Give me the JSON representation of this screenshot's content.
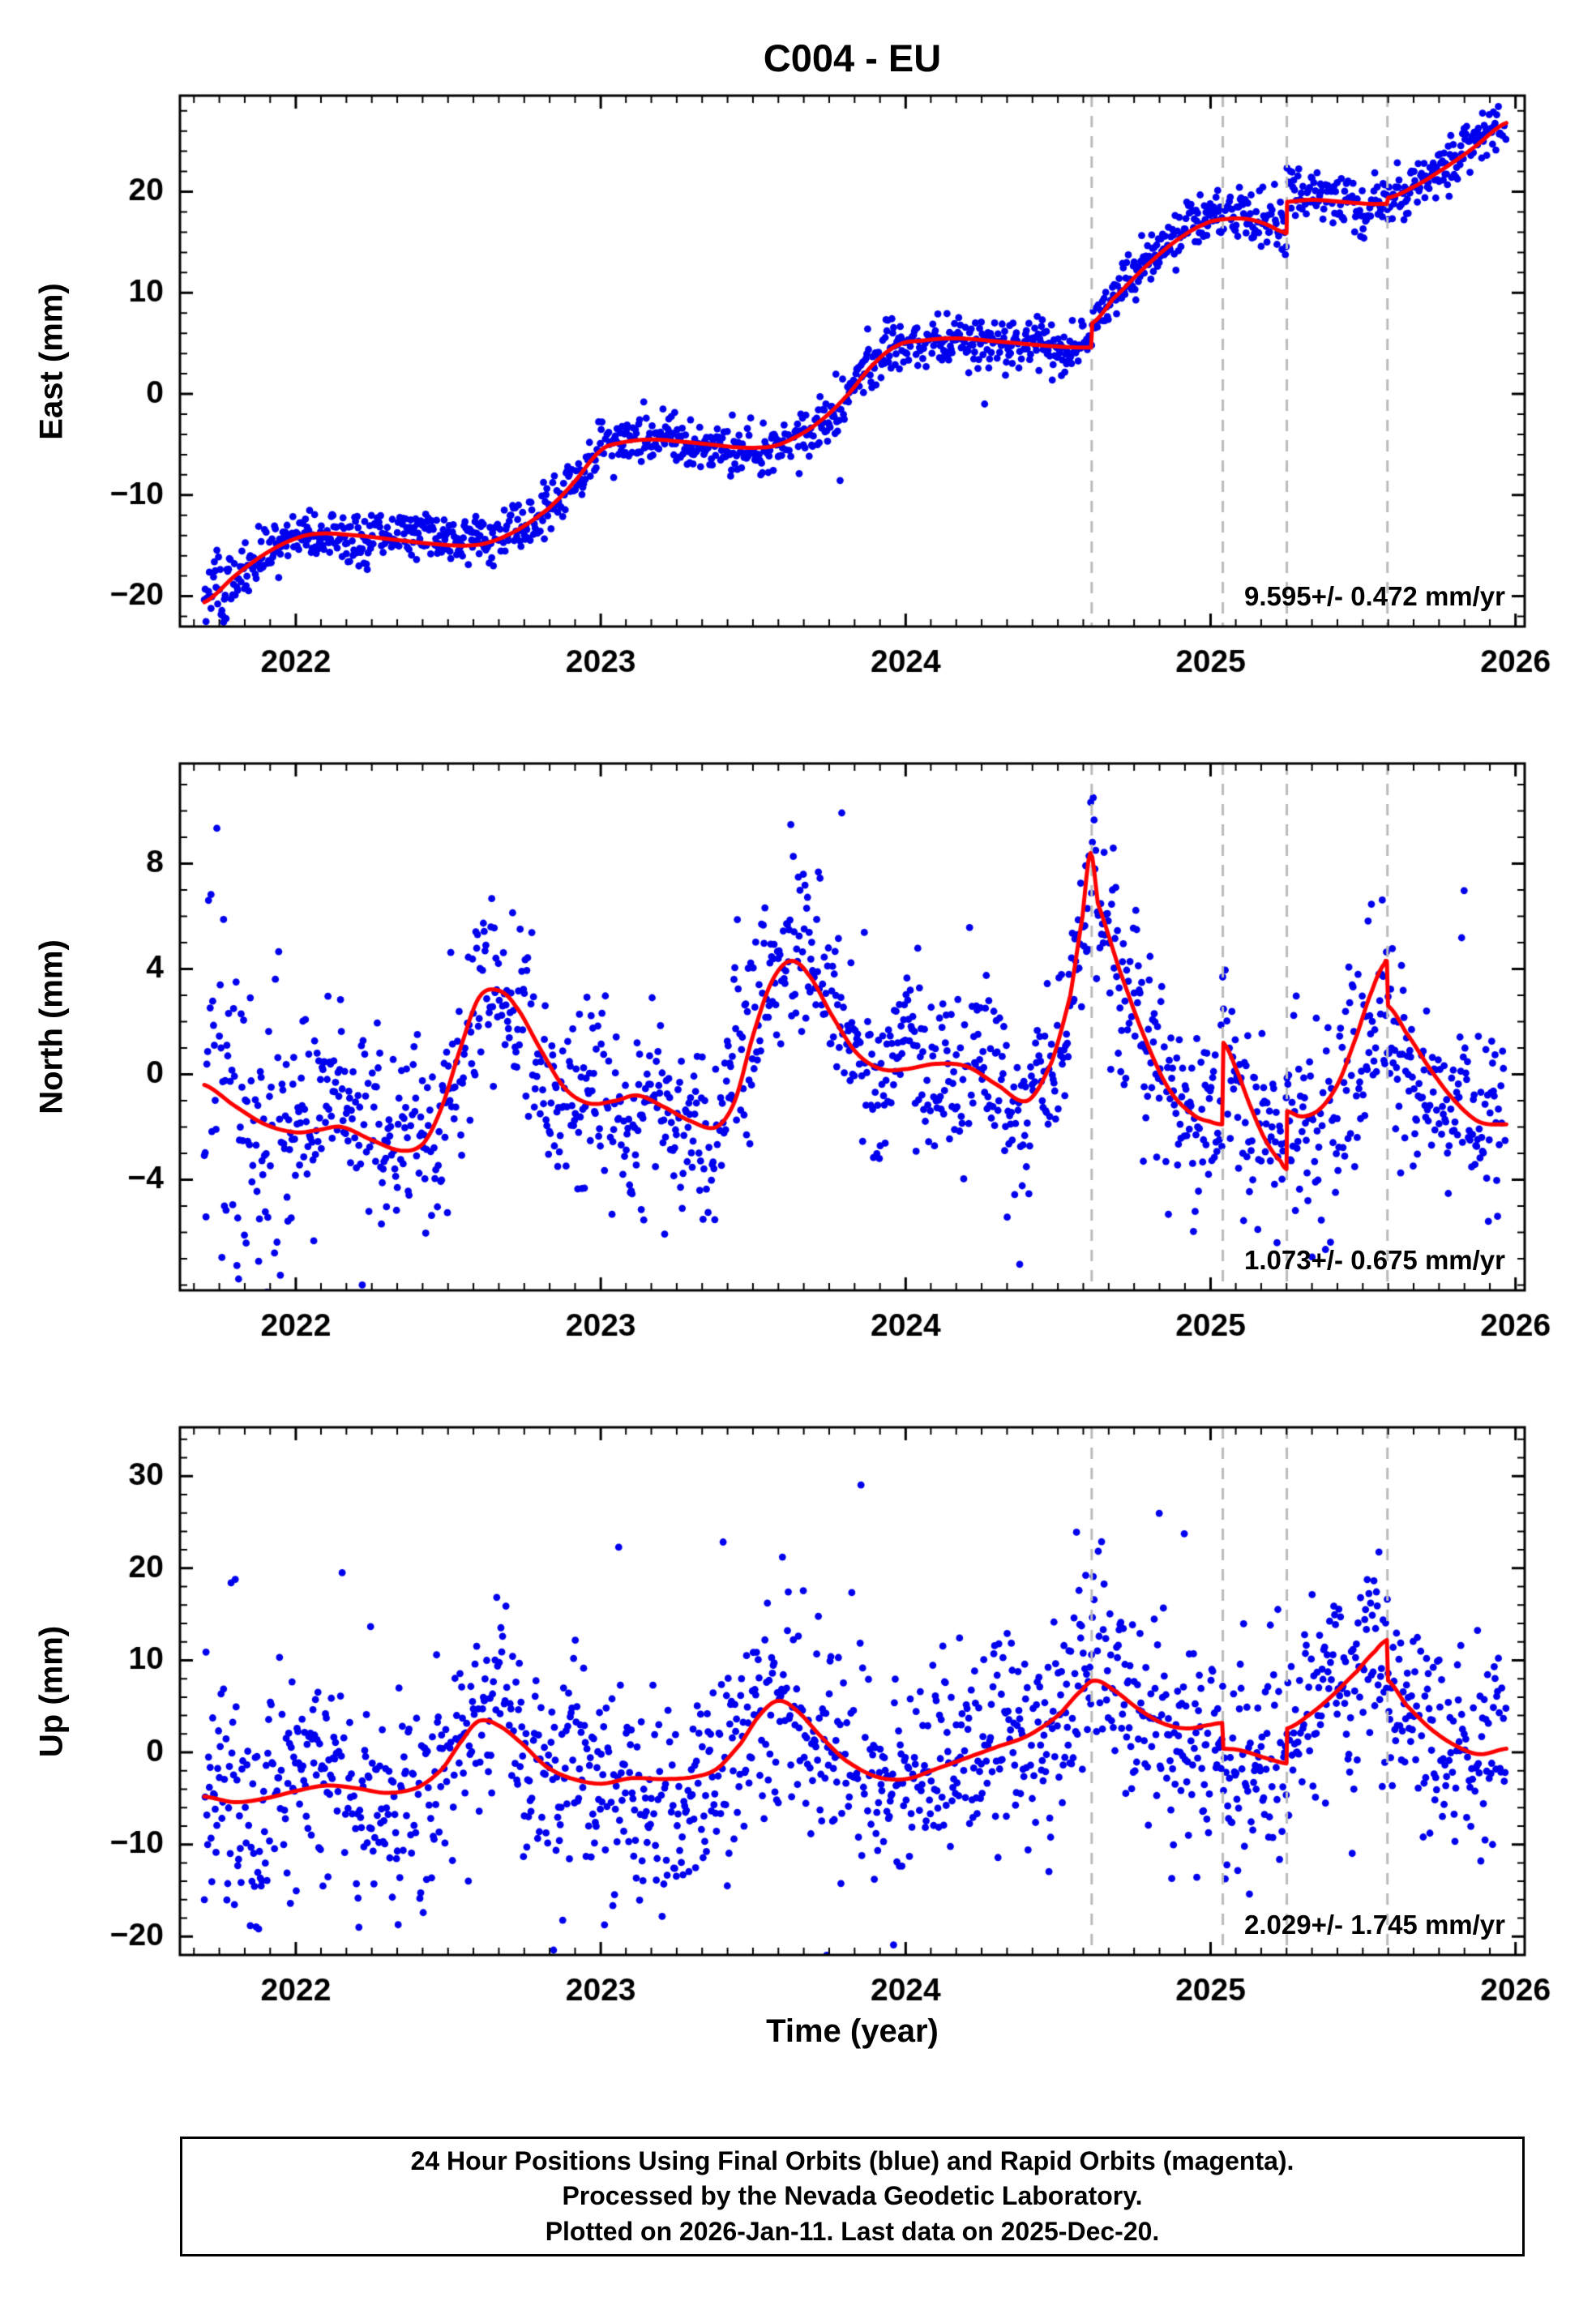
{
  "caption": {
    "lines": [
      "24 Hour Positions Using Final Orbits (blue) and Rapid Orbits (magenta).",
      "Processed by the Nevada Geodetic Laboratory.",
      "Plotted on 2026-Jan-11. Last data on 2025-Dec-20."
    ]
  },
  "chart_data": {
    "type": "scatter",
    "title": "C004 - EU",
    "xlabel": "Time (year)",
    "xlim": [
      2021.62,
      2026.03
    ],
    "xticks": [
      2022,
      2023,
      2024,
      2025,
      2026
    ],
    "x_minor_interval": 0.0833333,
    "x_start": 2021.7,
    "x_end": 2025.97,
    "cadence": "daily",
    "event_lines": [
      2024.61,
      2025.04,
      2025.25,
      2025.58
    ],
    "colors": {
      "points": "#0000ee",
      "trend": "#ff0000",
      "events": "#bbbbbb",
      "frame": "#000000"
    },
    "panels": [
      {
        "ylabel": "East (mm)",
        "ylim": [
          -23,
          29.5
        ],
        "yticks": [
          -20,
          -10,
          0,
          10,
          20
        ],
        "y_minor": 2,
        "rate_label": "9.595+/- 0.472 mm/yr",
        "noise_sigma": 1.25,
        "wander": 0.6,
        "outlier_prob": 0.015,
        "outlier_scale": 2.5,
        "early_until": 2021.88,
        "early_mult": 1.6,
        "trend": [
          [
            2021.7,
            -20.6
          ],
          [
            2021.8,
            -18.0
          ],
          [
            2021.9,
            -15.8
          ],
          [
            2022.0,
            -14.3
          ],
          [
            2022.08,
            -13.8
          ],
          [
            2022.2,
            -14.0
          ],
          [
            2022.32,
            -14.4
          ],
          [
            2022.44,
            -14.8
          ],
          [
            2022.55,
            -15.0
          ],
          [
            2022.63,
            -14.7
          ],
          [
            2022.73,
            -13.4
          ],
          [
            2022.83,
            -11.3
          ],
          [
            2022.91,
            -8.8
          ],
          [
            2023.0,
            -5.6
          ],
          [
            2023.07,
            -4.8
          ],
          [
            2023.16,
            -4.5
          ],
          [
            2023.26,
            -4.7
          ],
          [
            2023.36,
            -5.0
          ],
          [
            2023.46,
            -5.3
          ],
          [
            2023.56,
            -5.2
          ],
          [
            2023.63,
            -4.4
          ],
          [
            2023.71,
            -2.9
          ],
          [
            2023.8,
            -0.4
          ],
          [
            2023.9,
            3.1
          ],
          [
            2023.98,
            4.9
          ],
          [
            2024.06,
            5.3
          ],
          [
            2024.16,
            5.5
          ],
          [
            2024.3,
            5.2
          ],
          [
            2024.45,
            4.8
          ],
          [
            2024.56,
            4.6
          ],
          [
            2024.608,
            4.6
          ],
          [
            2024.612,
            7.0
          ],
          [
            2024.68,
            9.4
          ],
          [
            2024.78,
            12.4
          ],
          [
            2024.88,
            15.0
          ],
          [
            2024.98,
            16.8
          ],
          [
            2025.05,
            17.3
          ],
          [
            2025.12,
            17.3
          ],
          [
            2025.18,
            16.8
          ],
          [
            2025.24,
            16.0
          ],
          [
            2025.249,
            15.9
          ],
          [
            2025.251,
            19.0
          ],
          [
            2025.33,
            19.2
          ],
          [
            2025.43,
            19.0
          ],
          [
            2025.52,
            18.8
          ],
          [
            2025.578,
            18.8
          ],
          [
            2025.582,
            19.4
          ],
          [
            2025.66,
            20.4
          ],
          [
            2025.76,
            22.2
          ],
          [
            2025.86,
            24.3
          ],
          [
            2025.97,
            26.8
          ]
        ]
      },
      {
        "ylabel": "North (mm)",
        "ylim": [
          -8.2,
          11.8
        ],
        "yticks": [
          -4,
          0,
          4,
          8
        ],
        "y_minor": 1,
        "rate_label": "1.073+/- 0.675 mm/yr",
        "noise_sigma": 1.7,
        "wander": 0.8,
        "outlier_prob": 0.025,
        "outlier_scale": 2.2,
        "early_until": 2021.95,
        "early_mult": 2.4,
        "trend": [
          [
            2021.7,
            -0.4
          ],
          [
            2021.8,
            -1.2
          ],
          [
            2021.9,
            -1.9
          ],
          [
            2022.0,
            -2.2
          ],
          [
            2022.08,
            -2.1
          ],
          [
            2022.15,
            -2.0
          ],
          [
            2022.25,
            -2.5
          ],
          [
            2022.35,
            -2.9
          ],
          [
            2022.42,
            -2.6
          ],
          [
            2022.48,
            -1.2
          ],
          [
            2022.54,
            1.0
          ],
          [
            2022.6,
            2.9
          ],
          [
            2022.66,
            3.2
          ],
          [
            2022.72,
            2.6
          ],
          [
            2022.8,
            1.0
          ],
          [
            2022.88,
            -0.5
          ],
          [
            2022.96,
            -1.1
          ],
          [
            2023.05,
            -1.0
          ],
          [
            2023.12,
            -0.8
          ],
          [
            2023.2,
            -1.2
          ],
          [
            2023.3,
            -1.8
          ],
          [
            2023.38,
            -2.0
          ],
          [
            2023.44,
            -1.0
          ],
          [
            2023.5,
            1.5
          ],
          [
            2023.56,
            3.5
          ],
          [
            2023.62,
            4.3
          ],
          [
            2023.68,
            3.8
          ],
          [
            2023.76,
            2.2
          ],
          [
            2023.84,
            0.8
          ],
          [
            2023.92,
            0.2
          ],
          [
            2024.0,
            0.2
          ],
          [
            2024.1,
            0.4
          ],
          [
            2024.2,
            0.3
          ],
          [
            2024.3,
            -0.4
          ],
          [
            2024.4,
            -1.0
          ],
          [
            2024.48,
            0.5
          ],
          [
            2024.54,
            3.0
          ],
          [
            2024.58,
            6.0
          ],
          [
            2024.606,
            8.4
          ],
          [
            2024.63,
            6.5
          ],
          [
            2024.7,
            4.0
          ],
          [
            2024.78,
            1.5
          ],
          [
            2024.86,
            -0.5
          ],
          [
            2024.94,
            -1.5
          ],
          [
            2025.0,
            -1.8
          ],
          [
            2025.038,
            -1.9
          ],
          [
            2025.042,
            1.2
          ],
          [
            2025.08,
            0.3
          ],
          [
            2025.13,
            -1.2
          ],
          [
            2025.18,
            -2.5
          ],
          [
            2025.23,
            -3.3
          ],
          [
            2025.249,
            -3.6
          ],
          [
            2025.251,
            -1.4
          ],
          [
            2025.3,
            -1.6
          ],
          [
            2025.36,
            -1.3
          ],
          [
            2025.42,
            -0.3
          ],
          [
            2025.48,
            1.5
          ],
          [
            2025.53,
            3.2
          ],
          [
            2025.57,
            4.2
          ],
          [
            2025.578,
            4.3
          ],
          [
            2025.582,
            2.6
          ],
          [
            2025.64,
            1.6
          ],
          [
            2025.72,
            0.2
          ],
          [
            2025.8,
            -1.0
          ],
          [
            2025.88,
            -1.8
          ],
          [
            2025.97,
            -1.9
          ]
        ]
      },
      {
        "ylabel": "Up (mm)",
        "ylim": [
          -22,
          35.3
        ],
        "yticks": [
          -20,
          -10,
          0,
          10,
          20,
          30
        ],
        "y_minor": 2,
        "rate_label": "2.029+/- 1.745 mm/yr",
        "noise_sigma": 5.6,
        "wander": 1.2,
        "outlier_prob": 0.05,
        "outlier_scale": 2.1,
        "early_until": 2021.9,
        "early_mult": 1.2,
        "trend": [
          [
            2021.7,
            -4.8
          ],
          [
            2021.8,
            -5.4
          ],
          [
            2021.9,
            -5.0
          ],
          [
            2022.0,
            -4.2
          ],
          [
            2022.1,
            -3.6
          ],
          [
            2022.2,
            -3.9
          ],
          [
            2022.3,
            -4.4
          ],
          [
            2022.4,
            -3.8
          ],
          [
            2022.48,
            -1.8
          ],
          [
            2022.55,
            1.5
          ],
          [
            2022.6,
            3.4
          ],
          [
            2022.66,
            3.0
          ],
          [
            2022.74,
            1.0
          ],
          [
            2022.82,
            -1.5
          ],
          [
            2022.9,
            -2.8
          ],
          [
            2023.0,
            -3.4
          ],
          [
            2023.1,
            -2.8
          ],
          [
            2023.2,
            -2.9
          ],
          [
            2023.3,
            -2.7
          ],
          [
            2023.38,
            -1.8
          ],
          [
            2023.46,
            1.0
          ],
          [
            2023.52,
            4.0
          ],
          [
            2023.58,
            5.6
          ],
          [
            2023.64,
            4.6
          ],
          [
            2023.72,
            1.8
          ],
          [
            2023.8,
            -0.8
          ],
          [
            2023.9,
            -2.6
          ],
          [
            2024.0,
            -2.9
          ],
          [
            2024.1,
            -1.8
          ],
          [
            2024.2,
            -0.6
          ],
          [
            2024.3,
            0.6
          ],
          [
            2024.4,
            1.8
          ],
          [
            2024.5,
            4.0
          ],
          [
            2024.58,
            6.8
          ],
          [
            2024.62,
            7.8
          ],
          [
            2024.68,
            6.8
          ],
          [
            2024.76,
            4.8
          ],
          [
            2024.84,
            3.2
          ],
          [
            2024.92,
            2.6
          ],
          [
            2025.0,
            3.0
          ],
          [
            2025.038,
            3.2
          ],
          [
            2025.042,
            0.4
          ],
          [
            2025.1,
            0.2
          ],
          [
            2025.18,
            -0.6
          ],
          [
            2025.249,
            -1.2
          ],
          [
            2025.251,
            2.6
          ],
          [
            2025.32,
            4.0
          ],
          [
            2025.4,
            6.2
          ],
          [
            2025.48,
            8.8
          ],
          [
            2025.54,
            11.0
          ],
          [
            2025.578,
            12.2
          ],
          [
            2025.582,
            7.8
          ],
          [
            2025.64,
            5.2
          ],
          [
            2025.72,
            2.6
          ],
          [
            2025.8,
            0.8
          ],
          [
            2025.88,
            -0.2
          ],
          [
            2025.97,
            0.4
          ]
        ]
      }
    ]
  }
}
